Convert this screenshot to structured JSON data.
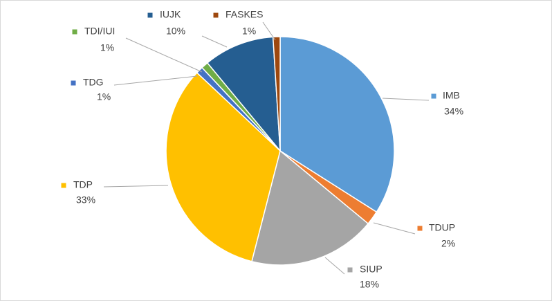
{
  "chart_data": {
    "type": "pie",
    "categories": [
      "IMB",
      "TDUP",
      "SIUP",
      "TDP",
      "TDG",
      "TDI/IUI",
      "IUJK",
      "FASKES"
    ],
    "values": [
      34,
      2,
      18,
      33,
      1,
      1,
      10,
      1
    ],
    "value_labels": [
      "34%",
      "2%",
      "18%",
      "33%",
      "1%",
      "1%",
      "10%",
      "1%"
    ],
    "colors": [
      "#5b9bd5",
      "#ed7d31",
      "#a5a5a5",
      "#ffc000",
      "#4472c4",
      "#70ad47",
      "#255e91",
      "#9e480e"
    ]
  }
}
